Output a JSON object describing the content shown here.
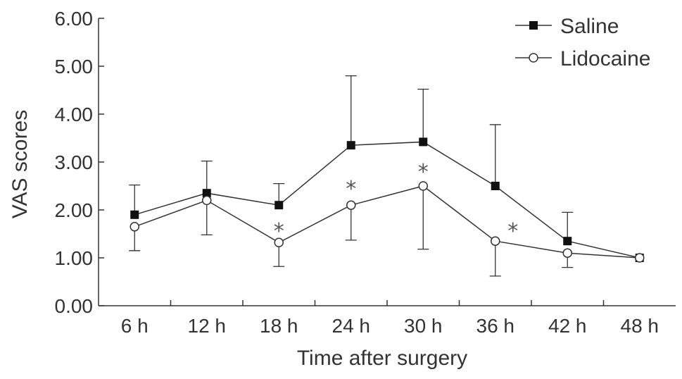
{
  "chart_data": {
    "type": "line",
    "categories": [
      "6 h",
      "12 h",
      "18 h",
      "24 h",
      "30 h",
      "36 h",
      "42 h",
      "48 h"
    ],
    "xlabel": "Time after surgery",
    "ylabel": "VAS scores",
    "ylim": [
      0,
      6
    ],
    "yticks": [
      "0.00",
      "1.00",
      "2.00",
      "3.00",
      "4.00",
      "5.00",
      "6.00"
    ],
    "grid": false,
    "legend": "top-right",
    "series": [
      {
        "name": "Saline",
        "marker": "filled-square",
        "values": [
          1.9,
          2.35,
          2.1,
          3.35,
          3.42,
          2.5,
          1.35,
          1.0
        ],
        "error_upper": [
          2.52,
          3.02,
          2.55,
          4.8,
          4.52,
          3.78,
          1.95,
          null
        ]
      },
      {
        "name": "Lidocaine",
        "marker": "open-circle",
        "values": [
          1.65,
          2.2,
          1.32,
          2.1,
          2.5,
          1.35,
          1.1,
          1.0
        ],
        "error_lower": [
          1.15,
          1.48,
          0.82,
          1.37,
          1.18,
          0.62,
          0.8,
          null
        ]
      }
    ],
    "significance": {
      "symbol": "*",
      "categories": [
        "18 h",
        "24 h",
        "30 h",
        "36 h"
      ],
      "y": [
        1.62,
        2.5,
        2.85,
        1.62
      ]
    },
    "line_color": "#333333"
  }
}
